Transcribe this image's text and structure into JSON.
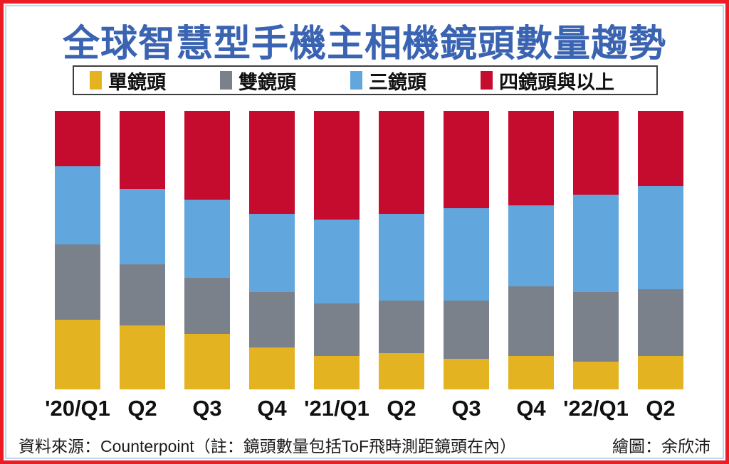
{
  "title": "全球智慧型手機主相機鏡頭數量趨勢",
  "legend": {
    "items": [
      {
        "key": "single",
        "label": "單鏡頭",
        "color": "#E4B322"
      },
      {
        "key": "dual",
        "label": "雙鏡頭",
        "color": "#7B818B"
      },
      {
        "key": "triple",
        "label": "三鏡頭",
        "color": "#61A7DE"
      },
      {
        "key": "quad_plus",
        "label": "四鏡頭與以上",
        "color": "#C60C2E"
      }
    ]
  },
  "chart_data": {
    "type": "bar",
    "stacked": true,
    "unit": "percent_share",
    "title": "全球智慧型手機主相機鏡頭數量趨勢",
    "xlabel": "",
    "ylabel": "",
    "ylim": [
      0,
      100
    ],
    "grid": false,
    "legend_position": "top",
    "categories": [
      "'20/Q1",
      "Q2",
      "Q3",
      "Q4",
      "'21/Q1",
      "Q2",
      "Q3",
      "Q4",
      "'22/Q1",
      "Q2"
    ],
    "series": [
      {
        "key": "single",
        "name": "單鏡頭",
        "color": "#E4B322",
        "values": [
          25,
          23,
          20,
          15,
          12,
          13,
          11,
          12,
          10,
          12
        ]
      },
      {
        "key": "dual",
        "name": "雙鏡頭",
        "color": "#7B818B",
        "values": [
          27,
          22,
          20,
          20,
          19,
          19,
          21,
          25,
          25,
          24
        ]
      },
      {
        "key": "triple",
        "name": "三鏡頭",
        "color": "#61A7DE",
        "values": [
          28,
          27,
          28,
          28,
          30,
          31,
          33,
          29,
          35,
          37
        ]
      },
      {
        "key": "quad_plus",
        "name": "四鏡頭與以上",
        "color": "#C60C2E",
        "values": [
          20,
          28,
          32,
          37,
          39,
          37,
          35,
          34,
          30,
          27
        ]
      }
    ]
  },
  "footer": {
    "source": "資料來源：Counterpoint（註：鏡頭數量包括ToF飛時測距鏡頭在內）",
    "credit": "繪圖：余欣沛"
  },
  "colors": {
    "title_text": "#3A63B1",
    "outer_border": "#EC1C24",
    "inner_border_line": "#BCD7EE",
    "legend_border": "#3E3E3E",
    "axis_label_text": "#111111",
    "footer_text": "#1a1a1a",
    "background": "#ffffff"
  }
}
